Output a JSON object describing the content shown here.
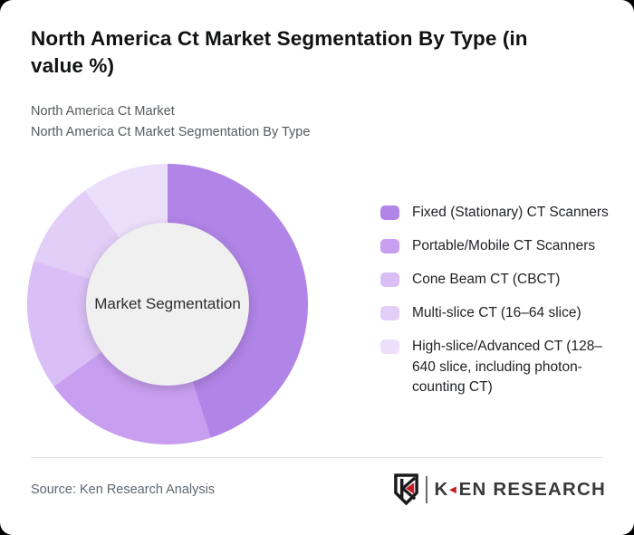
{
  "page": {
    "title": "North America Ct Market Segmentation By Type (in\nvalue %)",
    "subtitle_line1": "North America Ct Market",
    "subtitle_line2": "North America Ct Market Segmentation By Type"
  },
  "chart_data": {
    "type": "pie",
    "donut": true,
    "title": "North America Ct Market Segmentation By Type (in value %)",
    "center_label": "Market Segmentation",
    "categories": [
      "Fixed (Stationary) CT Scanners",
      "Portable/Mobile CT Scanners",
      "Cone Beam CT (CBCT)",
      "Multi-slice CT (16–64 slice)",
      "High-slice/Advanced CT (128–640 slice, including photon-counting CT)"
    ],
    "values": [
      45,
      20,
      15,
      10,
      10
    ],
    "unit": "percent",
    "colors": [
      "#b184e7",
      "#c89ef0",
      "#d9bff5",
      "#e3cef8",
      "#ecdffb"
    ],
    "hole_color": "#f0f0f0",
    "start_angle_deg": 0,
    "direction": "clockwise",
    "legend_position": "right"
  },
  "footer": {
    "source": "Source: Ken Research Analysis",
    "logo": {
      "wordmark_prefix": "K",
      "wordmark_suffix": "EN RESEARCH",
      "red_accent": "#c41e25",
      "red_triangle_glyph": "◄"
    }
  }
}
